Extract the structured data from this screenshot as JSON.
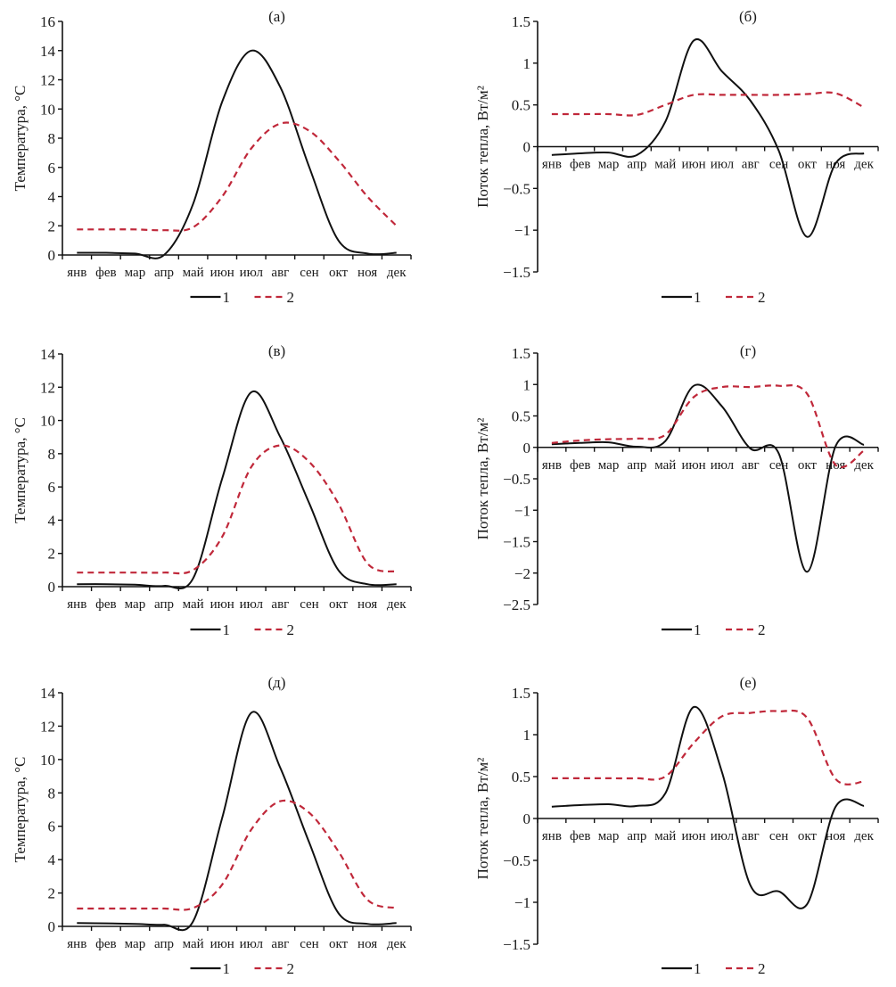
{
  "chart_data": [
    {
      "id": "a",
      "type": "line",
      "title": "(а)",
      "xlabel": "",
      "ylabel": "Температура, °C",
      "categories": [
        "янв",
        "фев",
        "мар",
        "апр",
        "май",
        "июн",
        "июл",
        "авг",
        "сен",
        "окт",
        "ноя",
        "дек"
      ],
      "ylim": [
        0,
        16
      ],
      "yticks": [
        0,
        2,
        4,
        6,
        8,
        10,
        12,
        14,
        16
      ],
      "ytick_labels": [
        "0",
        "2",
        "4",
        "6",
        "8",
        "10",
        "12",
        "14",
        "16"
      ],
      "grid": false,
      "legend_position": "bottom",
      "series": [
        {
          "name": "1",
          "style": "solid",
          "color": "#111111",
          "values": [
            0.15,
            0.15,
            0.1,
            0.0,
            3.5,
            10.5,
            14.0,
            11.5,
            6.0,
            1.0,
            0.1,
            0.15
          ]
        },
        {
          "name": "2",
          "style": "dashed",
          "color": "#c0283a",
          "values": [
            1.75,
            1.75,
            1.75,
            1.7,
            1.9,
            4.0,
            7.3,
            9.0,
            8.5,
            6.5,
            4.0,
            2.0
          ]
        }
      ]
    },
    {
      "id": "b",
      "type": "line",
      "title": "(б)",
      "xlabel": "",
      "ylabel": "Поток тепла,  Вт/м²",
      "categories": [
        "янв",
        "фев",
        "мар",
        "апр",
        "май",
        "июн",
        "июл",
        "авг",
        "сен",
        "окт",
        "ноя",
        "дек"
      ],
      "ylim": [
        -1.5,
        1.5
      ],
      "yticks": [
        -1.5,
        -1,
        -0.5,
        0,
        0.5,
        1,
        1.5
      ],
      "ytick_labels": [
        "−1.5",
        "−1",
        "−0.5",
        "0",
        "0.5",
        "1",
        "1.5"
      ],
      "grid": false,
      "legend_position": "bottom",
      "series": [
        {
          "name": "1",
          "style": "solid",
          "color": "#111111",
          "values": [
            -0.1,
            -0.08,
            -0.07,
            -0.1,
            0.3,
            1.27,
            0.9,
            0.55,
            -0.05,
            -1.08,
            -0.2,
            -0.08
          ]
        },
        {
          "name": "2",
          "style": "dashed",
          "color": "#c0283a",
          "values": [
            0.39,
            0.39,
            0.39,
            0.38,
            0.5,
            0.62,
            0.62,
            0.62,
            0.62,
            0.63,
            0.64,
            0.47
          ]
        }
      ]
    },
    {
      "id": "v",
      "type": "line",
      "title": "(в)",
      "xlabel": "",
      "ylabel": "Температура, °C",
      "categories": [
        "янв",
        "фев",
        "мар",
        "апр",
        "май",
        "июн",
        "июл",
        "авг",
        "сен",
        "окт",
        "ноя",
        "дек"
      ],
      "ylim": [
        0,
        14
      ],
      "yticks": [
        0,
        2,
        4,
        6,
        8,
        10,
        12,
        14
      ],
      "ytick_labels": [
        "0",
        "2",
        "4",
        "6",
        "8",
        "10",
        "12",
        "14"
      ],
      "grid": false,
      "legend_position": "bottom",
      "series": [
        {
          "name": "1",
          "style": "solid",
          "color": "#111111",
          "values": [
            0.15,
            0.15,
            0.12,
            0.05,
            0.5,
            6.5,
            11.7,
            9.0,
            5.0,
            1.0,
            0.15,
            0.15
          ]
        },
        {
          "name": "2",
          "style": "dashed",
          "color": "#c0283a",
          "values": [
            0.85,
            0.85,
            0.85,
            0.85,
            1.0,
            3.0,
            7.2,
            8.5,
            7.5,
            5.0,
            1.4,
            0.9
          ]
        }
      ]
    },
    {
      "id": "g",
      "type": "line",
      "title": "(г)",
      "xlabel": "",
      "ylabel": "Поток тепла,  Вт/м²",
      "categories": [
        "янв",
        "фев",
        "мар",
        "апр",
        "май",
        "июн",
        "июл",
        "авг",
        "сен",
        "окт",
        "ноя",
        "дек"
      ],
      "ylim": [
        -2.5,
        1.5
      ],
      "yticks": [
        -2.5,
        -2,
        -1.5,
        -1,
        -0.5,
        0,
        0.5,
        1,
        1.5
      ],
      "ytick_labels": [
        "−2.5",
        "−2",
        "−1.5",
        "−1",
        "−0.5",
        "0",
        "0.5",
        "1",
        "1.5"
      ],
      "grid": false,
      "legend_position": "bottom",
      "series": [
        {
          "name": "1",
          "style": "solid",
          "color": "#111111",
          "values": [
            0.05,
            0.07,
            0.08,
            0.01,
            0.1,
            0.98,
            0.65,
            -0.02,
            -0.1,
            -1.98,
            0.02,
            0.04
          ]
        },
        {
          "name": "2",
          "style": "dashed",
          "color": "#c0283a",
          "values": [
            0.07,
            0.11,
            0.13,
            0.14,
            0.2,
            0.8,
            0.96,
            0.96,
            0.98,
            0.85,
            -0.28,
            -0.05
          ]
        }
      ]
    },
    {
      "id": "d",
      "type": "line",
      "title": "(д)",
      "xlabel": "",
      "ylabel": "Температура, °C",
      "categories": [
        "янв",
        "фев",
        "мар",
        "апр",
        "май",
        "июн",
        "июл",
        "авг",
        "сен",
        "окт",
        "ноя",
        "дек"
      ],
      "ylim": [
        0,
        14
      ],
      "yticks": [
        0,
        2,
        4,
        6,
        8,
        10,
        12,
        14
      ],
      "ytick_labels": [
        "0",
        "2",
        "4",
        "6",
        "8",
        "10",
        "12",
        "14"
      ],
      "grid": false,
      "legend_position": "bottom",
      "series": [
        {
          "name": "1",
          "style": "solid",
          "color": "#111111",
          "values": [
            0.2,
            0.18,
            0.15,
            0.1,
            0.3,
            6.5,
            12.8,
            9.5,
            5.0,
            0.8,
            0.15,
            0.2
          ]
        },
        {
          "name": "2",
          "style": "dashed",
          "color": "#c0283a",
          "values": [
            1.07,
            1.07,
            1.07,
            1.07,
            1.1,
            2.5,
            5.8,
            7.5,
            6.8,
            4.5,
            1.6,
            1.1
          ]
        }
      ]
    },
    {
      "id": "e",
      "type": "line",
      "title": "(е)",
      "xlabel": "",
      "ylabel": "Поток тепла,  Вт/м²",
      "categories": [
        "янв",
        "фев",
        "мар",
        "апр",
        "май",
        "июн",
        "июл",
        "авг",
        "сен",
        "окт",
        "ноя",
        "дек"
      ],
      "ylim": [
        -1.5,
        1.5
      ],
      "yticks": [
        -1.5,
        -1,
        -0.5,
        0,
        0.5,
        1,
        1.5
      ],
      "ytick_labels": [
        "−1.5",
        "−1",
        "−0.5",
        "0",
        "0.5",
        "1",
        "1.5"
      ],
      "grid": false,
      "legend_position": "bottom",
      "series": [
        {
          "name": "1",
          "style": "solid",
          "color": "#111111",
          "values": [
            0.14,
            0.16,
            0.17,
            0.15,
            0.3,
            1.33,
            0.55,
            -0.8,
            -0.87,
            -1.02,
            0.14,
            0.15
          ]
        },
        {
          "name": "2",
          "style": "dashed",
          "color": "#c0283a",
          "values": [
            0.48,
            0.48,
            0.48,
            0.48,
            0.5,
            0.9,
            1.22,
            1.26,
            1.28,
            1.2,
            0.47,
            0.44
          ]
        }
      ]
    }
  ]
}
